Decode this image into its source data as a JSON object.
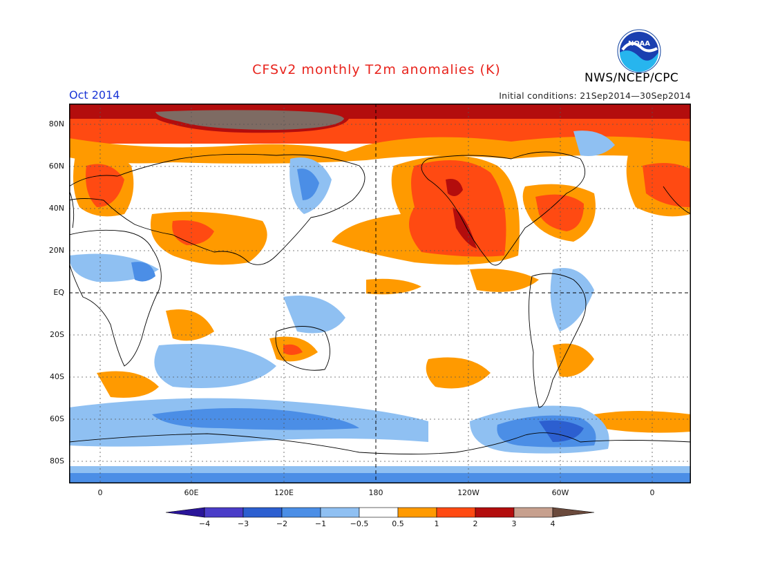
{
  "title": "CFSv2 monthly T2m anomalies (K)",
  "month_label": "Oct 2014",
  "initial_conditions": "Initial conditions: 21Sep2014—30Sep2014",
  "agency": "NWS/NCEP/CPC",
  "logo_text": "NOAA",
  "map": {
    "lat_labels": [
      "80N",
      "60N",
      "40N",
      "20N",
      "EQ",
      "20S",
      "40S",
      "60S",
      "80S"
    ],
    "lon_labels": [
      "0",
      "60E",
      "120E",
      "180",
      "120W",
      "60W",
      "0"
    ]
  },
  "legend": {
    "labels": [
      "−4",
      "−3",
      "−2",
      "−1",
      "−0.5",
      "0.5",
      "1",
      "2",
      "3",
      "4"
    ],
    "colors": [
      "#2a1599",
      "#4a3cc8",
      "#2c5fd0",
      "#4b8ee6",
      "#8fc0f2",
      "#ffffff",
      "#ff9a00",
      "#ff4a12",
      "#b30d0d",
      "#c7a08e",
      "#6b4a3c"
    ]
  }
}
